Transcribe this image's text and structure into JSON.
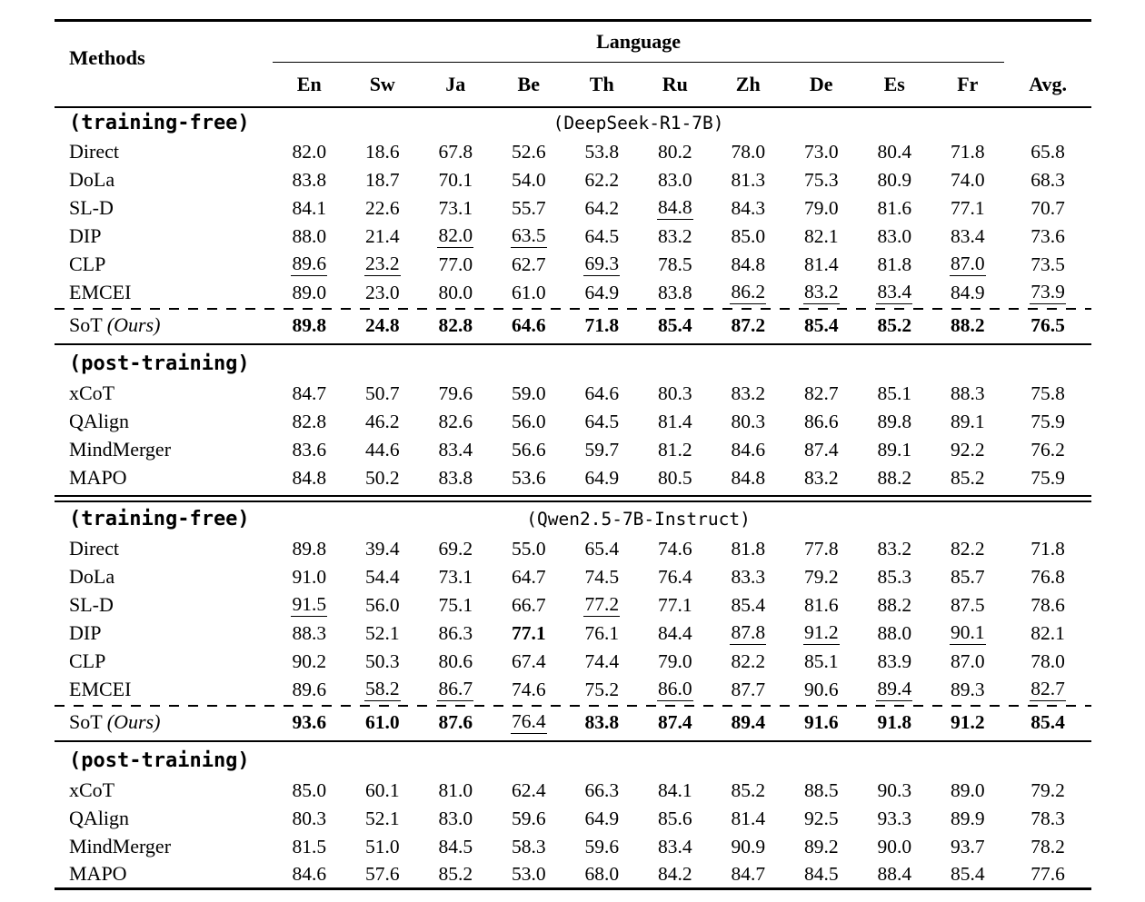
{
  "colors": {
    "text": "#000000",
    "background": "#ffffff",
    "rule": "#000000"
  },
  "table": {
    "header": {
      "methods_label": "Methods",
      "language_group_label": "Language",
      "language_columns": [
        "En",
        "Sw",
        "Ja",
        "Be",
        "Th",
        "Ru",
        "Zh",
        "De",
        "Es",
        "Fr"
      ],
      "avg_label": "Avg."
    },
    "sections": [
      {
        "type_label": "(training-free)",
        "model_label": "(DeepSeek-R1-7B)",
        "divider_above": "none",
        "rows": [
          {
            "method": "Direct",
            "cells": [
              {
                "t": "82.0"
              },
              {
                "t": "18.6"
              },
              {
                "t": "67.8"
              },
              {
                "t": "52.6"
              },
              {
                "t": "53.8"
              },
              {
                "t": "80.2"
              },
              {
                "t": "78.0"
              },
              {
                "t": "73.0"
              },
              {
                "t": "80.4"
              },
              {
                "t": "71.8"
              },
              {
                "t": "65.8"
              }
            ]
          },
          {
            "method": "DoLa",
            "cells": [
              {
                "t": "83.8"
              },
              {
                "t": "18.7"
              },
              {
                "t": "70.1"
              },
              {
                "t": "54.0"
              },
              {
                "t": "62.2"
              },
              {
                "t": "83.0"
              },
              {
                "t": "81.3"
              },
              {
                "t": "75.3"
              },
              {
                "t": "80.9"
              },
              {
                "t": "74.0"
              },
              {
                "t": "68.3"
              }
            ]
          },
          {
            "method": "SL-D",
            "cells": [
              {
                "t": "84.1"
              },
              {
                "t": "22.6"
              },
              {
                "t": "73.1"
              },
              {
                "t": "55.7"
              },
              {
                "t": "64.2"
              },
              {
                "t": "84.8",
                "u": true
              },
              {
                "t": "84.3"
              },
              {
                "t": "79.0"
              },
              {
                "t": "81.6"
              },
              {
                "t": "77.1"
              },
              {
                "t": "70.7"
              }
            ]
          },
          {
            "method": "DIP",
            "cells": [
              {
                "t": "88.0"
              },
              {
                "t": "21.4"
              },
              {
                "t": "82.0",
                "u": true
              },
              {
                "t": "63.5",
                "u": true
              },
              {
                "t": "64.5"
              },
              {
                "t": "83.2"
              },
              {
                "t": "85.0"
              },
              {
                "t": "82.1"
              },
              {
                "t": "83.0"
              },
              {
                "t": "83.4"
              },
              {
                "t": "73.6"
              }
            ]
          },
          {
            "method": "CLP",
            "cells": [
              {
                "t": "89.6",
                "u": true
              },
              {
                "t": "23.2",
                "u": true
              },
              {
                "t": "77.0"
              },
              {
                "t": "62.7"
              },
              {
                "t": "69.3",
                "u": true
              },
              {
                "t": "78.5"
              },
              {
                "t": "84.8"
              },
              {
                "t": "81.4"
              },
              {
                "t": "81.8"
              },
              {
                "t": "87.0",
                "u": true
              },
              {
                "t": "73.5"
              }
            ]
          },
          {
            "method": "EMCEI",
            "cells": [
              {
                "t": "89.0"
              },
              {
                "t": "23.0"
              },
              {
                "t": "80.0"
              },
              {
                "t": "61.0"
              },
              {
                "t": "64.9"
              },
              {
                "t": "83.8"
              },
              {
                "t": "86.2",
                "u": true
              },
              {
                "t": "83.2",
                "u": true
              },
              {
                "t": "83.4",
                "u": true
              },
              {
                "t": "84.9"
              },
              {
                "t": "73.9",
                "u": true
              }
            ]
          },
          {
            "method": "SoT",
            "method_italic": "(Ours)",
            "dashed_above": true,
            "cells": [
              {
                "t": "89.8",
                "b": true
              },
              {
                "t": "24.8",
                "b": true
              },
              {
                "t": "82.8",
                "b": true
              },
              {
                "t": "64.6",
                "b": true
              },
              {
                "t": "71.8",
                "b": true
              },
              {
                "t": "85.4",
                "b": true
              },
              {
                "t": "87.2",
                "b": true
              },
              {
                "t": "85.4",
                "b": true
              },
              {
                "t": "85.2",
                "b": true
              },
              {
                "t": "88.2",
                "b": true
              },
              {
                "t": "76.5",
                "b": true
              }
            ]
          }
        ]
      },
      {
        "type_label": "(post-training)",
        "model_label": "",
        "divider_above": "single",
        "rows": [
          {
            "method": "xCoT",
            "cells": [
              {
                "t": "84.7"
              },
              {
                "t": "50.7"
              },
              {
                "t": "79.6"
              },
              {
                "t": "59.0"
              },
              {
                "t": "64.6"
              },
              {
                "t": "80.3"
              },
              {
                "t": "83.2"
              },
              {
                "t": "82.7"
              },
              {
                "t": "85.1"
              },
              {
                "t": "88.3"
              },
              {
                "t": "75.8"
              }
            ]
          },
          {
            "method": "QAlign",
            "cells": [
              {
                "t": "82.8"
              },
              {
                "t": "46.2"
              },
              {
                "t": "82.6"
              },
              {
                "t": "56.0"
              },
              {
                "t": "64.5"
              },
              {
                "t": "81.4"
              },
              {
                "t": "80.3"
              },
              {
                "t": "86.6"
              },
              {
                "t": "89.8"
              },
              {
                "t": "89.1"
              },
              {
                "t": "75.9"
              }
            ]
          },
          {
            "method": "MindMerger",
            "cells": [
              {
                "t": "83.6"
              },
              {
                "t": "44.6"
              },
              {
                "t": "83.4"
              },
              {
                "t": "56.6"
              },
              {
                "t": "59.7"
              },
              {
                "t": "81.2"
              },
              {
                "t": "84.6"
              },
              {
                "t": "87.4"
              },
              {
                "t": "89.1"
              },
              {
                "t": "92.2"
              },
              {
                "t": "76.2"
              }
            ]
          },
          {
            "method": "MAPO",
            "cells": [
              {
                "t": "84.8"
              },
              {
                "t": "50.2"
              },
              {
                "t": "83.8"
              },
              {
                "t": "53.6"
              },
              {
                "t": "64.9"
              },
              {
                "t": "80.5"
              },
              {
                "t": "84.8"
              },
              {
                "t": "83.2"
              },
              {
                "t": "88.2"
              },
              {
                "t": "85.2"
              },
              {
                "t": "75.9"
              }
            ]
          }
        ]
      },
      {
        "type_label": "(training-free)",
        "model_label": "(Qwen2.5-7B-Instruct)",
        "divider_above": "double",
        "rows": [
          {
            "method": "Direct",
            "cells": [
              {
                "t": "89.8"
              },
              {
                "t": "39.4"
              },
              {
                "t": "69.2"
              },
              {
                "t": "55.0"
              },
              {
                "t": "65.4"
              },
              {
                "t": "74.6"
              },
              {
                "t": "81.8"
              },
              {
                "t": "77.8"
              },
              {
                "t": "83.2"
              },
              {
                "t": "82.2"
              },
              {
                "t": "71.8"
              }
            ]
          },
          {
            "method": "DoLa",
            "cells": [
              {
                "t": "91.0"
              },
              {
                "t": "54.4"
              },
              {
                "t": "73.1"
              },
              {
                "t": "64.7"
              },
              {
                "t": "74.5"
              },
              {
                "t": "76.4"
              },
              {
                "t": "83.3"
              },
              {
                "t": "79.2"
              },
              {
                "t": "85.3"
              },
              {
                "t": "85.7"
              },
              {
                "t": "76.8"
              }
            ]
          },
          {
            "method": "SL-D",
            "cells": [
              {
                "t": "91.5",
                "u": true
              },
              {
                "t": "56.0"
              },
              {
                "t": "75.1"
              },
              {
                "t": "66.7"
              },
              {
                "t": "77.2",
                "u": true
              },
              {
                "t": "77.1"
              },
              {
                "t": "85.4"
              },
              {
                "t": "81.6"
              },
              {
                "t": "88.2"
              },
              {
                "t": "87.5"
              },
              {
                "t": "78.6"
              }
            ]
          },
          {
            "method": "DIP",
            "cells": [
              {
                "t": "88.3"
              },
              {
                "t": "52.1"
              },
              {
                "t": "86.3"
              },
              {
                "t": "77.1",
                "b": true
              },
              {
                "t": "76.1"
              },
              {
                "t": "84.4"
              },
              {
                "t": "87.8",
                "u": true
              },
              {
                "t": "91.2",
                "u": true
              },
              {
                "t": "88.0"
              },
              {
                "t": "90.1",
                "u": true
              },
              {
                "t": "82.1"
              }
            ]
          },
          {
            "method": "CLP",
            "cells": [
              {
                "t": "90.2"
              },
              {
                "t": "50.3"
              },
              {
                "t": "80.6"
              },
              {
                "t": "67.4"
              },
              {
                "t": "74.4"
              },
              {
                "t": "79.0"
              },
              {
                "t": "82.2"
              },
              {
                "t": "85.1"
              },
              {
                "t": "83.9"
              },
              {
                "t": "87.0"
              },
              {
                "t": "78.0"
              }
            ]
          },
          {
            "method": "EMCEI",
            "cells": [
              {
                "t": "89.6"
              },
              {
                "t": "58.2",
                "u": true
              },
              {
                "t": "86.7",
                "u": true
              },
              {
                "t": "74.6"
              },
              {
                "t": "75.2"
              },
              {
                "t": "86.0",
                "u": true
              },
              {
                "t": "87.7"
              },
              {
                "t": "90.6"
              },
              {
                "t": "89.4",
                "u": true
              },
              {
                "t": "89.3"
              },
              {
                "t": "82.7",
                "u": true
              }
            ]
          },
          {
            "method": "SoT",
            "method_italic": "(Ours)",
            "dashed_above": true,
            "cells": [
              {
                "t": "93.6",
                "b": true
              },
              {
                "t": "61.0",
                "b": true
              },
              {
                "t": "87.6",
                "b": true
              },
              {
                "t": "76.4",
                "u": true
              },
              {
                "t": "83.8",
                "b": true
              },
              {
                "t": "87.4",
                "b": true
              },
              {
                "t": "89.4",
                "b": true
              },
              {
                "t": "91.6",
                "b": true
              },
              {
                "t": "91.8",
                "b": true
              },
              {
                "t": "91.2",
                "b": true
              },
              {
                "t": "85.4",
                "b": true
              }
            ]
          }
        ]
      },
      {
        "type_label": "(post-training)",
        "model_label": "",
        "divider_above": "single",
        "rows": [
          {
            "method": "xCoT",
            "cells": [
              {
                "t": "85.0"
              },
              {
                "t": "60.1"
              },
              {
                "t": "81.0"
              },
              {
                "t": "62.4"
              },
              {
                "t": "66.3"
              },
              {
                "t": "84.1"
              },
              {
                "t": "85.2"
              },
              {
                "t": "88.5"
              },
              {
                "t": "90.3"
              },
              {
                "t": "89.0"
              },
              {
                "t": "79.2"
              }
            ]
          },
          {
            "method": "QAlign",
            "cells": [
              {
                "t": "80.3"
              },
              {
                "t": "52.1"
              },
              {
                "t": "83.0"
              },
              {
                "t": "59.6"
              },
              {
                "t": "64.9"
              },
              {
                "t": "85.6"
              },
              {
                "t": "81.4"
              },
              {
                "t": "92.5"
              },
              {
                "t": "93.3"
              },
              {
                "t": "89.9"
              },
              {
                "t": "78.3"
              }
            ]
          },
          {
            "method": "MindMerger",
            "cells": [
              {
                "t": "81.5"
              },
              {
                "t": "51.0"
              },
              {
                "t": "84.5"
              },
              {
                "t": "58.3"
              },
              {
                "t": "59.6"
              },
              {
                "t": "83.4"
              },
              {
                "t": "90.9"
              },
              {
                "t": "89.2"
              },
              {
                "t": "90.0"
              },
              {
                "t": "93.7"
              },
              {
                "t": "78.2"
              }
            ]
          },
          {
            "method": "MAPO",
            "cells": [
              {
                "t": "84.6"
              },
              {
                "t": "57.6"
              },
              {
                "t": "85.2"
              },
              {
                "t": "53.0"
              },
              {
                "t": "68.0"
              },
              {
                "t": "84.2"
              },
              {
                "t": "84.7"
              },
              {
                "t": "84.5"
              },
              {
                "t": "88.4"
              },
              {
                "t": "85.4"
              },
              {
                "t": "77.6"
              }
            ]
          }
        ]
      }
    ]
  }
}
